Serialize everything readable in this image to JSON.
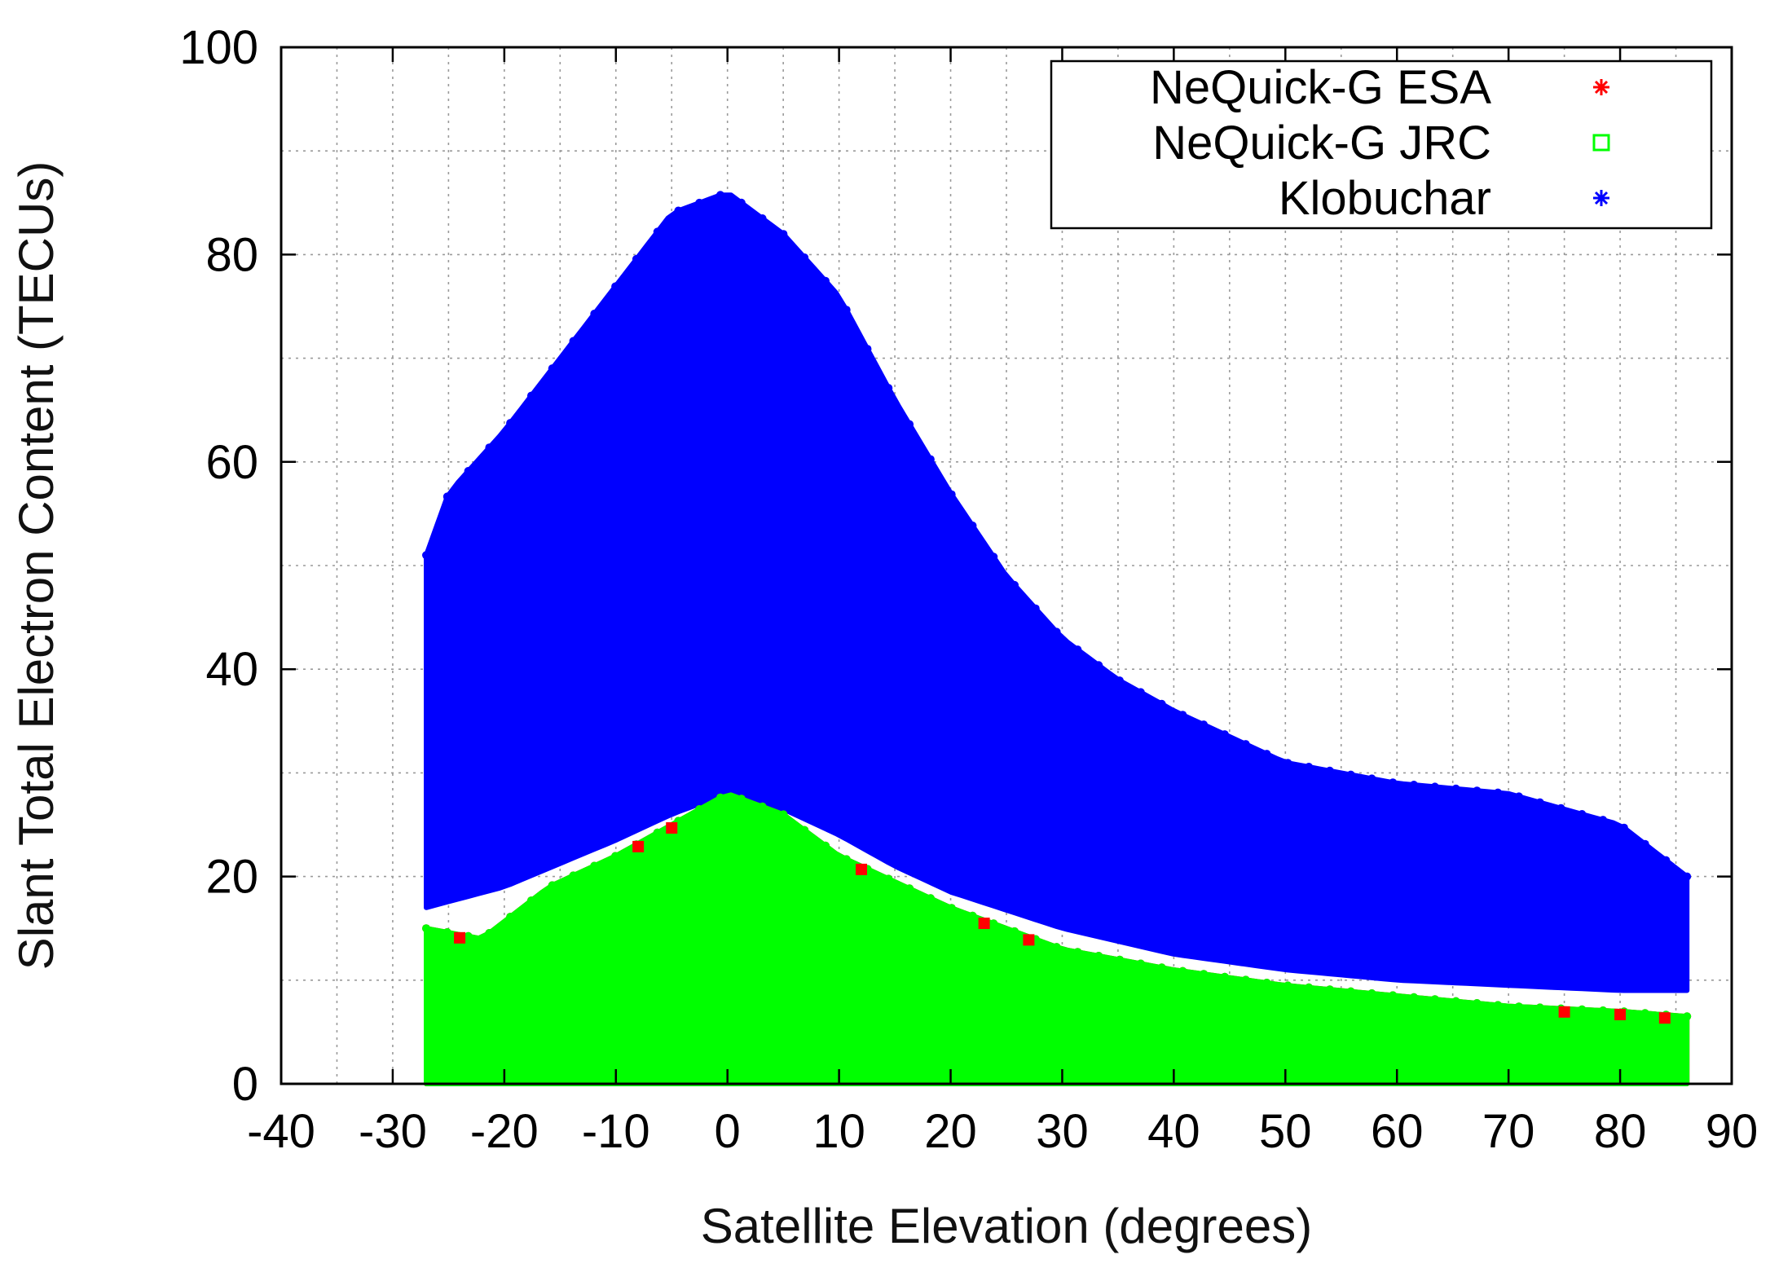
{
  "chart_data": {
    "type": "scatter",
    "title": "",
    "xlabel": "Satellite Elevation (degrees)",
    "ylabel": "Slant Total Electron Content (TECUs)",
    "xlim": [
      -40,
      90
    ],
    "ylim": [
      0,
      100
    ],
    "x_ticks": [
      "-40",
      "-30",
      "-20",
      "-10",
      "0",
      "10",
      "20",
      "30",
      "40",
      "50",
      "60",
      "70",
      "80",
      "90"
    ],
    "y_ticks": [
      "0",
      "20",
      "40",
      "60",
      "80",
      "100"
    ],
    "x_tick_values": [
      -40,
      -30,
      -20,
      -10,
      0,
      10,
      20,
      30,
      40,
      50,
      60,
      70,
      80,
      90
    ],
    "y_tick_values": [
      0,
      20,
      40,
      60,
      80,
      100
    ],
    "grid": true,
    "legend_position": "top-right",
    "series": [
      {
        "name": "NeQuick-G ESA",
        "color": "#ff0000",
        "marker": "asterisk",
        "upper_envelope": {
          "x": [
            -27,
            -22,
            -16,
            -10,
            -5,
            0,
            5,
            10,
            20,
            30,
            40,
            50,
            60,
            70,
            80,
            86
          ],
          "y": [
            15,
            14,
            19,
            22,
            25,
            28,
            26,
            22,
            17,
            13,
            11,
            9.5,
            8.5,
            7.5,
            7,
            6.5
          ]
        },
        "lower_envelope": {
          "x": [
            -27,
            86
          ],
          "y": [
            0,
            0
          ]
        }
      },
      {
        "name": "NeQuick-G JRC",
        "color": "#00ff00",
        "marker": "square",
        "upper_envelope": {
          "x": [
            -27,
            -22,
            -16,
            -10,
            -5,
            0,
            5,
            10,
            20,
            30,
            40,
            50,
            60,
            70,
            80,
            86
          ],
          "y": [
            15,
            14,
            19,
            22,
            25,
            28,
            26,
            22,
            17,
            13,
            11,
            9.5,
            8.5,
            7.5,
            7,
            6.5
          ]
        },
        "lower_envelope": {
          "x": [
            -27,
            86
          ],
          "y": [
            0,
            0
          ]
        }
      },
      {
        "name": "Klobuchar",
        "color": "#0000ff",
        "marker": "asterisk",
        "upper_envelope": {
          "x": [
            -27,
            -25,
            -20,
            -15,
            -10,
            -5,
            0,
            5,
            10,
            15,
            20,
            25,
            30,
            35,
            40,
            50,
            60,
            70,
            80,
            86
          ],
          "y": [
            51,
            57,
            63,
            70,
            77,
            84,
            86,
            82,
            76,
            66,
            57,
            49,
            43,
            39,
            36,
            31,
            29,
            28,
            25,
            20
          ]
        },
        "lower_envelope": {
          "x": [
            -27,
            -20,
            -10,
            -5,
            0,
            5,
            10,
            15,
            20,
            30,
            40,
            50,
            60,
            70,
            80,
            86
          ],
          "y": [
            17,
            19,
            23.5,
            26,
            28,
            26.5,
            24,
            21,
            18.5,
            15,
            12.5,
            11,
            10,
            9.5,
            9,
            9
          ]
        }
      }
    ]
  }
}
